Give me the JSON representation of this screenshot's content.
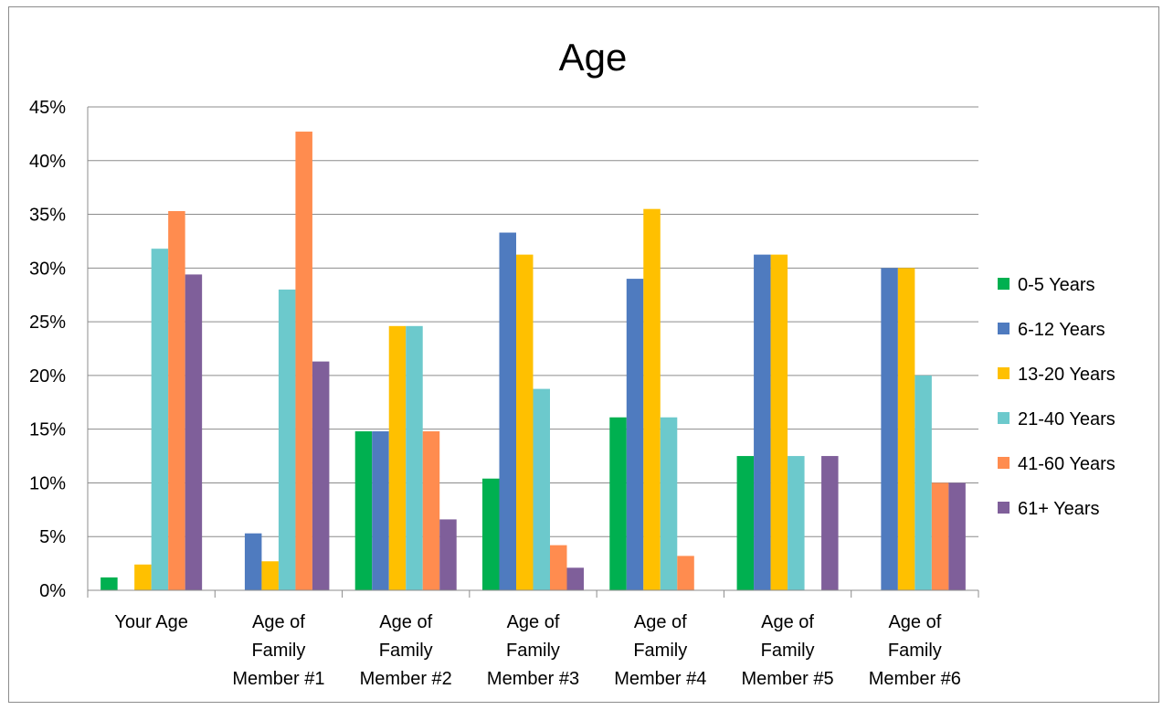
{
  "chart_data": {
    "type": "bar",
    "title": "Age",
    "categories": [
      [
        "Your Age"
      ],
      [
        "Age of",
        "Family",
        "Member #1"
      ],
      [
        "Age of",
        "Family",
        "Member #2"
      ],
      [
        "Age of",
        "Family",
        "Member #3"
      ],
      [
        "Age of",
        "Family",
        "Member #4"
      ],
      [
        "Age of",
        "Family",
        "Member #5"
      ],
      [
        "Age of",
        "Family",
        "Member #6"
      ]
    ],
    "series": [
      {
        "name": "0-5 Years",
        "color": "#00b050",
        "values": [
          1.2,
          0,
          14.8,
          10.4,
          16.1,
          12.5,
          0
        ]
      },
      {
        "name": "6-12 Years",
        "color": "#4f7bbf",
        "values": [
          0,
          5.3,
          14.8,
          33.3,
          29.0,
          31.25,
          30.0
        ]
      },
      {
        "name": "13-20 Years",
        "color": "#ffc000",
        "values": [
          2.4,
          2.7,
          24.6,
          31.25,
          35.5,
          31.25,
          30.0
        ]
      },
      {
        "name": "21-40 Years",
        "color": "#6cc9cc",
        "values": [
          31.8,
          28.0,
          24.6,
          18.75,
          16.1,
          12.5,
          20.0
        ]
      },
      {
        "name": "41-60 Years",
        "color": "#ff8c4f",
        "values": [
          35.3,
          42.7,
          14.8,
          4.2,
          3.2,
          0,
          10.0
        ]
      },
      {
        "name": "61+ Years",
        "color": "#7f5f9a",
        "values": [
          29.4,
          21.3,
          6.6,
          2.1,
          0,
          12.5,
          10.0
        ]
      }
    ],
    "ylim": [
      0,
      45
    ],
    "yticks": [
      "0%",
      "5%",
      "10%",
      "15%",
      "20%",
      "25%",
      "30%",
      "35%",
      "40%",
      "45%"
    ],
    "grid": true,
    "legend_position": "right"
  }
}
